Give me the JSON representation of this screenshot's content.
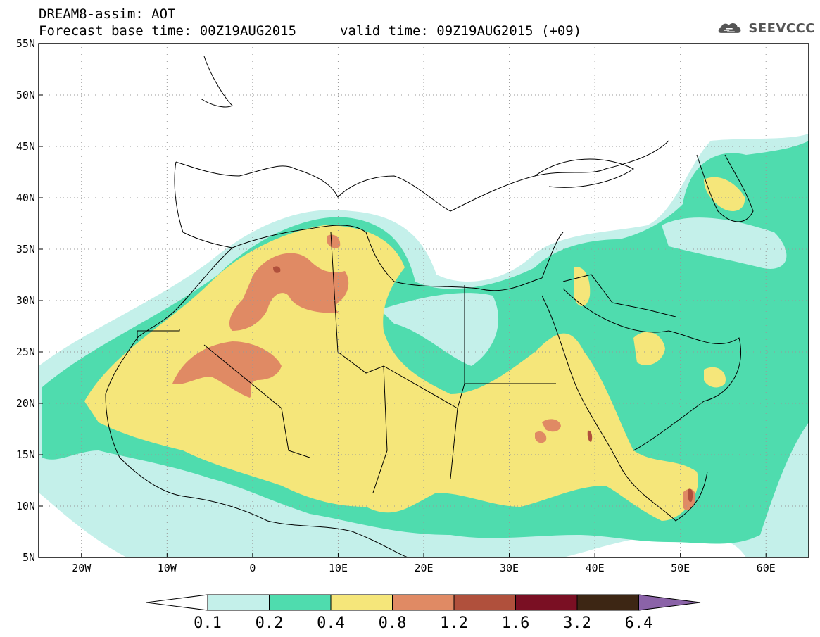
{
  "header": {
    "title_line1": "DREAM8-assim: AOT",
    "title_line2": "Forecast base time: 00Z19AUG2015",
    "valid_time": "valid time: 09Z19AUG2015 (+09)",
    "logo_text": "SEEVCCC"
  },
  "map": {
    "lat_labels": [
      "55N",
      "50N",
      "45N",
      "40N",
      "35N",
      "30N",
      "25N",
      "20N",
      "15N",
      "10N",
      "5N"
    ],
    "lon_labels": [
      "20W",
      "10W",
      "0",
      "10E",
      "20E",
      "30E",
      "40E",
      "50E",
      "60E"
    ],
    "lon_range": [
      -25,
      65
    ],
    "lat_range": [
      5,
      55
    ]
  },
  "colorbar": {
    "labels": [
      "0.1",
      "0.2",
      "0.4",
      "0.8",
      "1.2",
      "1.6",
      "3.2",
      "6.4"
    ],
    "colors": [
      "#ffffff",
      "#c4f0ea",
      "#4fdcae",
      "#f5e67a",
      "#e08a64",
      "#b0503c",
      "#7a0f23",
      "#3d2614",
      "#8b63a8"
    ]
  },
  "colors": {
    "level_0_1": "#c4f0ea",
    "level_0_2": "#4fdcae",
    "level_0_4": "#f5e67a",
    "level_0_8": "#e08a64",
    "level_1_2": "#b0503c",
    "level_1_6": "#7a0f23"
  }
}
